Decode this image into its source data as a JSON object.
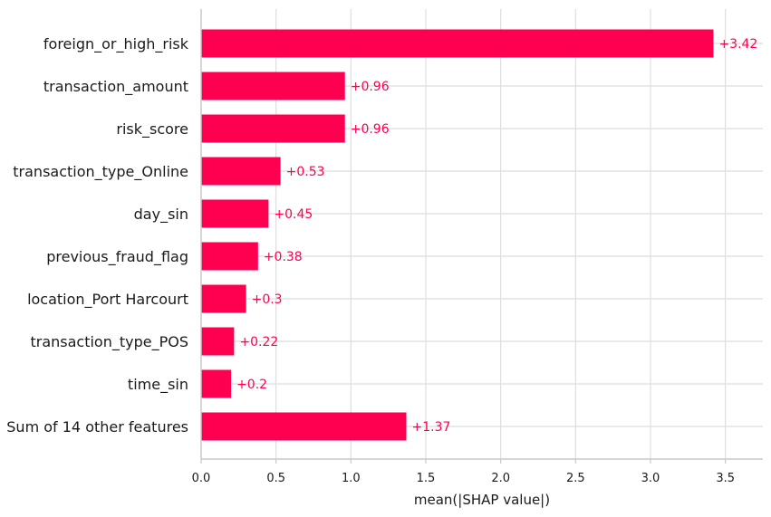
{
  "chart_data": {
    "type": "bar",
    "orientation": "horizontal",
    "categories": [
      "foreign_or_high_risk",
      "transaction_amount",
      "risk_score",
      "transaction_type_Online",
      "day_sin",
      "previous_fraud_flag",
      "location_Port Harcourt",
      "transaction_type_POS",
      "time_sin",
      "Sum of 14 other features"
    ],
    "values": [
      3.42,
      0.96,
      0.96,
      0.53,
      0.45,
      0.38,
      0.3,
      0.22,
      0.2,
      1.37
    ],
    "value_labels": [
      "+3.42",
      "+0.96",
      "+0.96",
      "+0.53",
      "+0.45",
      "+0.38",
      "+0.3",
      "+0.22",
      "+0.2",
      "+1.37"
    ],
    "xlabel": "mean(|SHAP value|)",
    "ylabel": "",
    "xlim": [
      0,
      3.75
    ],
    "xticks": [
      0.0,
      0.5,
      1.0,
      1.5,
      2.0,
      2.5,
      3.0,
      3.5
    ],
    "xtick_labels": [
      "0.0",
      "0.5",
      "1.0",
      "1.5",
      "2.0",
      "2.5",
      "3.0",
      "3.5"
    ],
    "grid": true,
    "bar_color": "#ff0051"
  }
}
